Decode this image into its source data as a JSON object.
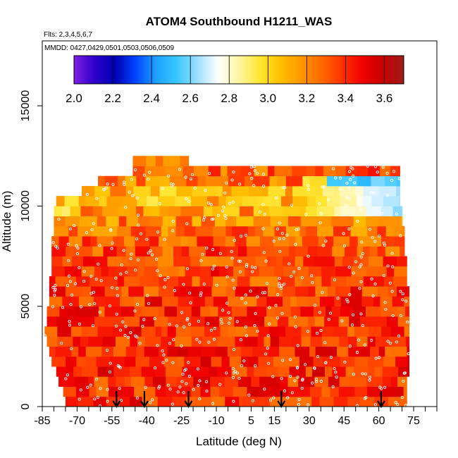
{
  "chart_data": {
    "type": "heatmap",
    "title": "ATOM4 Southbound H1211_WAS",
    "annotations": [
      "Flts: 2,3,4,5,6,7",
      "MMDD: 0427,0429,0501,0503,0506,0509"
    ],
    "xlabel": "Latitude (deg N)",
    "ylabel": "Altitude (m)",
    "xlim": [
      -85,
      85
    ],
    "ylim": [
      0,
      17500
    ],
    "x_ticks": [
      -85,
      -70,
      -55,
      -40,
      -25,
      -10,
      5,
      15,
      30,
      45,
      60,
      75
    ],
    "x_tick_labels": [
      "-85",
      "-70",
      "-55",
      "-40",
      "-25",
      "-10",
      "5",
      "15",
      "30",
      "45",
      "60",
      "75"
    ],
    "x_minor_ticks": [
      -80,
      -75,
      -65,
      -60,
      -50,
      -45,
      -35,
      -30,
      -20,
      -15,
      -5,
      0,
      10,
      20,
      25,
      35,
      40,
      50,
      55,
      65,
      70,
      80,
      85
    ],
    "y_ticks": [
      0,
      5000,
      10000,
      15000
    ],
    "y_tick_labels": [
      "0",
      "5000",
      "10000",
      "15000"
    ],
    "grid": false,
    "colorbar": {
      "placement": "top-inset",
      "range": [
        2.0,
        3.7
      ],
      "ticks": [
        2.0,
        2.2,
        2.4,
        2.6,
        2.8,
        3.0,
        3.2,
        3.4,
        3.6
      ],
      "tick_labels": [
        "2.0",
        "2.2",
        "2.4",
        "2.6",
        "2.8",
        "3.0",
        "3.2",
        "3.4",
        "3.6"
      ],
      "colors": [
        "#7f1fe6",
        "#2d00c8",
        "#0000b4",
        "#0045ff",
        "#1fa2ff",
        "#38c8ff",
        "#9fdfff",
        "#ffffff",
        "#fff5a0",
        "#ffe733",
        "#ffc000",
        "#ff9800",
        "#ff6a00",
        "#ff3300",
        "#f00000",
        "#c80000",
        "#a01b1b"
      ]
    },
    "vertical_profile_markers_lat": [
      -53,
      -41,
      -22,
      18,
      61
    ],
    "altitude_bins": [
      0,
      500,
      1000,
      1500,
      2000,
      2500,
      3000,
      3500,
      4000,
      4500,
      5000,
      5500,
      6000,
      6500,
      7000,
      7500,
      8000,
      8500,
      9000,
      9500,
      10000,
      10500,
      11000,
      11500,
      12000
    ],
    "lat_extent_by_bin": [
      [
        -75,
        72
      ],
      [
        -76,
        72
      ],
      [
        -78,
        72
      ],
      [
        -79,
        73
      ],
      [
        -81,
        73
      ],
      [
        -82,
        73
      ],
      [
        -83,
        73
      ],
      [
        -84,
        73
      ],
      [
        -83,
        73
      ],
      [
        -83,
        73
      ],
      [
        -82,
        73
      ],
      [
        -82,
        73
      ],
      [
        -82,
        72
      ],
      [
        -81,
        72
      ],
      [
        -81,
        72
      ],
      [
        -81,
        71
      ],
      [
        -81,
        71
      ],
      [
        -80,
        71
      ],
      [
        -80,
        70
      ],
      [
        -80,
        70
      ],
      [
        -79,
        69
      ],
      [
        -68,
        69
      ],
      [
        -61,
        69
      ],
      [
        -46,
        69
      ],
      [
        -46,
        -22
      ]
    ],
    "value_profile": {
      "altitude_m": [
        0,
        2000,
        4000,
        6000,
        8000,
        9500,
        10500,
        11500
      ],
      "typical_value": [
        3.4,
        3.42,
        3.4,
        3.38,
        3.32,
        3.2,
        3.05,
        3.3
      ],
      "note_values": {
        "upper_north_minimum": 2.6,
        "max": 3.65
      }
    }
  }
}
